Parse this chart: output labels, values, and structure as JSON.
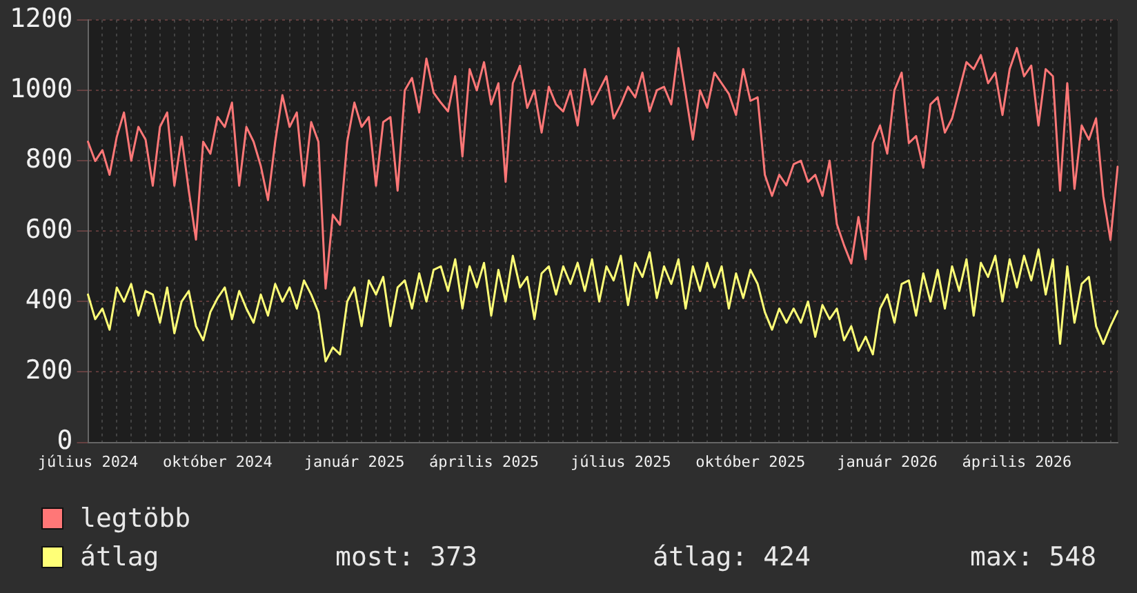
{
  "chart_data": {
    "type": "line",
    "categories": [
      "július 2024",
      null,
      null,
      null,
      null,
      null,
      null,
      null,
      null,
      null,
      null,
      null,
      null,
      null,
      null,
      null,
      null,
      null,
      "október 2024",
      null,
      null,
      null,
      null,
      null,
      null,
      null,
      null,
      null,
      null,
      null,
      null,
      null,
      null,
      null,
      null,
      null,
      null,
      "január 2025",
      null,
      null,
      null,
      null,
      null,
      null,
      null,
      null,
      null,
      null,
      null,
      null,
      null,
      null,
      null,
      null,
      null,
      "április 2025",
      null,
      null,
      null,
      null,
      null,
      null,
      null,
      null,
      null,
      null,
      null,
      null,
      null,
      null,
      null,
      null,
      null,
      null,
      "július 2025",
      null,
      null,
      null,
      null,
      null,
      null,
      null,
      null,
      null,
      null,
      null,
      null,
      null,
      null,
      null,
      null,
      null,
      "október 2025",
      null,
      null,
      null,
      null,
      null,
      null,
      null,
      null,
      null,
      null,
      null,
      null,
      null,
      null,
      null,
      null,
      null,
      null,
      "január 2026",
      null,
      null,
      null,
      null,
      null,
      null,
      null,
      null,
      null,
      null,
      null,
      null,
      null,
      null,
      null,
      null,
      null,
      "április 2026",
      null,
      null,
      null,
      null,
      null,
      null,
      null,
      null,
      null,
      null,
      null,
      null,
      null,
      null
    ],
    "series": [
      {
        "name": "legtöbb",
        "color": "#ff7777",
        "values": [
          854,
          799,
          830,
          760,
          868,
          937,
          800,
          896,
          860,
          729,
          896,
          937,
          729,
          868,
          715,
          576,
          854,
          820,
          924,
          896,
          965,
          729,
          896,
          854,
          785,
          688,
          854,
          986,
          896,
          937,
          729,
          910,
          854,
          437,
          646,
          618,
          854,
          965,
          896,
          924,
          729,
          910,
          924,
          715,
          1000,
          1035,
          937,
          1090,
          993,
          965,
          940,
          1040,
          812,
          1060,
          1000,
          1080,
          960,
          1020,
          740,
          1020,
          1070,
          950,
          1000,
          880,
          1010,
          960,
          940,
          1000,
          900,
          1060,
          960,
          1000,
          1040,
          920,
          960,
          1010,
          980,
          1050,
          940,
          1000,
          1010,
          960,
          1120,
          990,
          860,
          1000,
          950,
          1050,
          1020,
          990,
          930,
          1060,
          970,
          980,
          760,
          700,
          760,
          730,
          790,
          800,
          740,
          760,
          700,
          800,
          620,
          560,
          508,
          640,
          520,
          850,
          900,
          820,
          1000,
          1050,
          850,
          870,
          780,
          960,
          980,
          880,
          920,
          1000,
          1080,
          1060,
          1100,
          1020,
          1050,
          930,
          1060,
          1120,
          1040,
          1070,
          900,
          1060,
          1040,
          715,
          1020,
          720,
          900,
          860,
          920,
          700,
          575,
          783
        ]
      },
      {
        "name": "átlag",
        "color": "#ffff77",
        "values": [
          420,
          350,
          380,
          320,
          440,
          400,
          450,
          360,
          430,
          420,
          340,
          440,
          310,
          400,
          430,
          330,
          290,
          370,
          410,
          440,
          350,
          430,
          380,
          340,
          420,
          360,
          450,
          400,
          440,
          380,
          460,
          420,
          370,
          230,
          270,
          250,
          400,
          440,
          330,
          460,
          420,
          470,
          330,
          440,
          460,
          380,
          480,
          400,
          490,
          500,
          430,
          520,
          380,
          500,
          440,
          510,
          360,
          490,
          400,
          530,
          440,
          470,
          350,
          480,
          500,
          420,
          500,
          450,
          510,
          430,
          520,
          400,
          500,
          460,
          530,
          390,
          510,
          470,
          540,
          410,
          500,
          450,
          520,
          380,
          500,
          430,
          510,
          440,
          500,
          380,
          480,
          410,
          490,
          450,
          370,
          320,
          380,
          340,
          380,
          340,
          400,
          300,
          390,
          350,
          380,
          290,
          330,
          260,
          300,
          250,
          380,
          420,
          340,
          450,
          460,
          360,
          480,
          400,
          490,
          380,
          500,
          430,
          520,
          360,
          510,
          470,
          530,
          400,
          520,
          440,
          530,
          460,
          548,
          420,
          520,
          280,
          500,
          340,
          450,
          470,
          330,
          280,
          330,
          373
        ]
      }
    ],
    "ylim": [
      0,
      1200
    ],
    "yticks": [
      0,
      200,
      400,
      600,
      800,
      1000,
      1200
    ],
    "grid": true,
    "legend": "bottom left",
    "marker": "none",
    "line_style": "solid",
    "annotations": [
      "most: 373",
      "átlag: 424",
      "max: 548"
    ]
  }
}
